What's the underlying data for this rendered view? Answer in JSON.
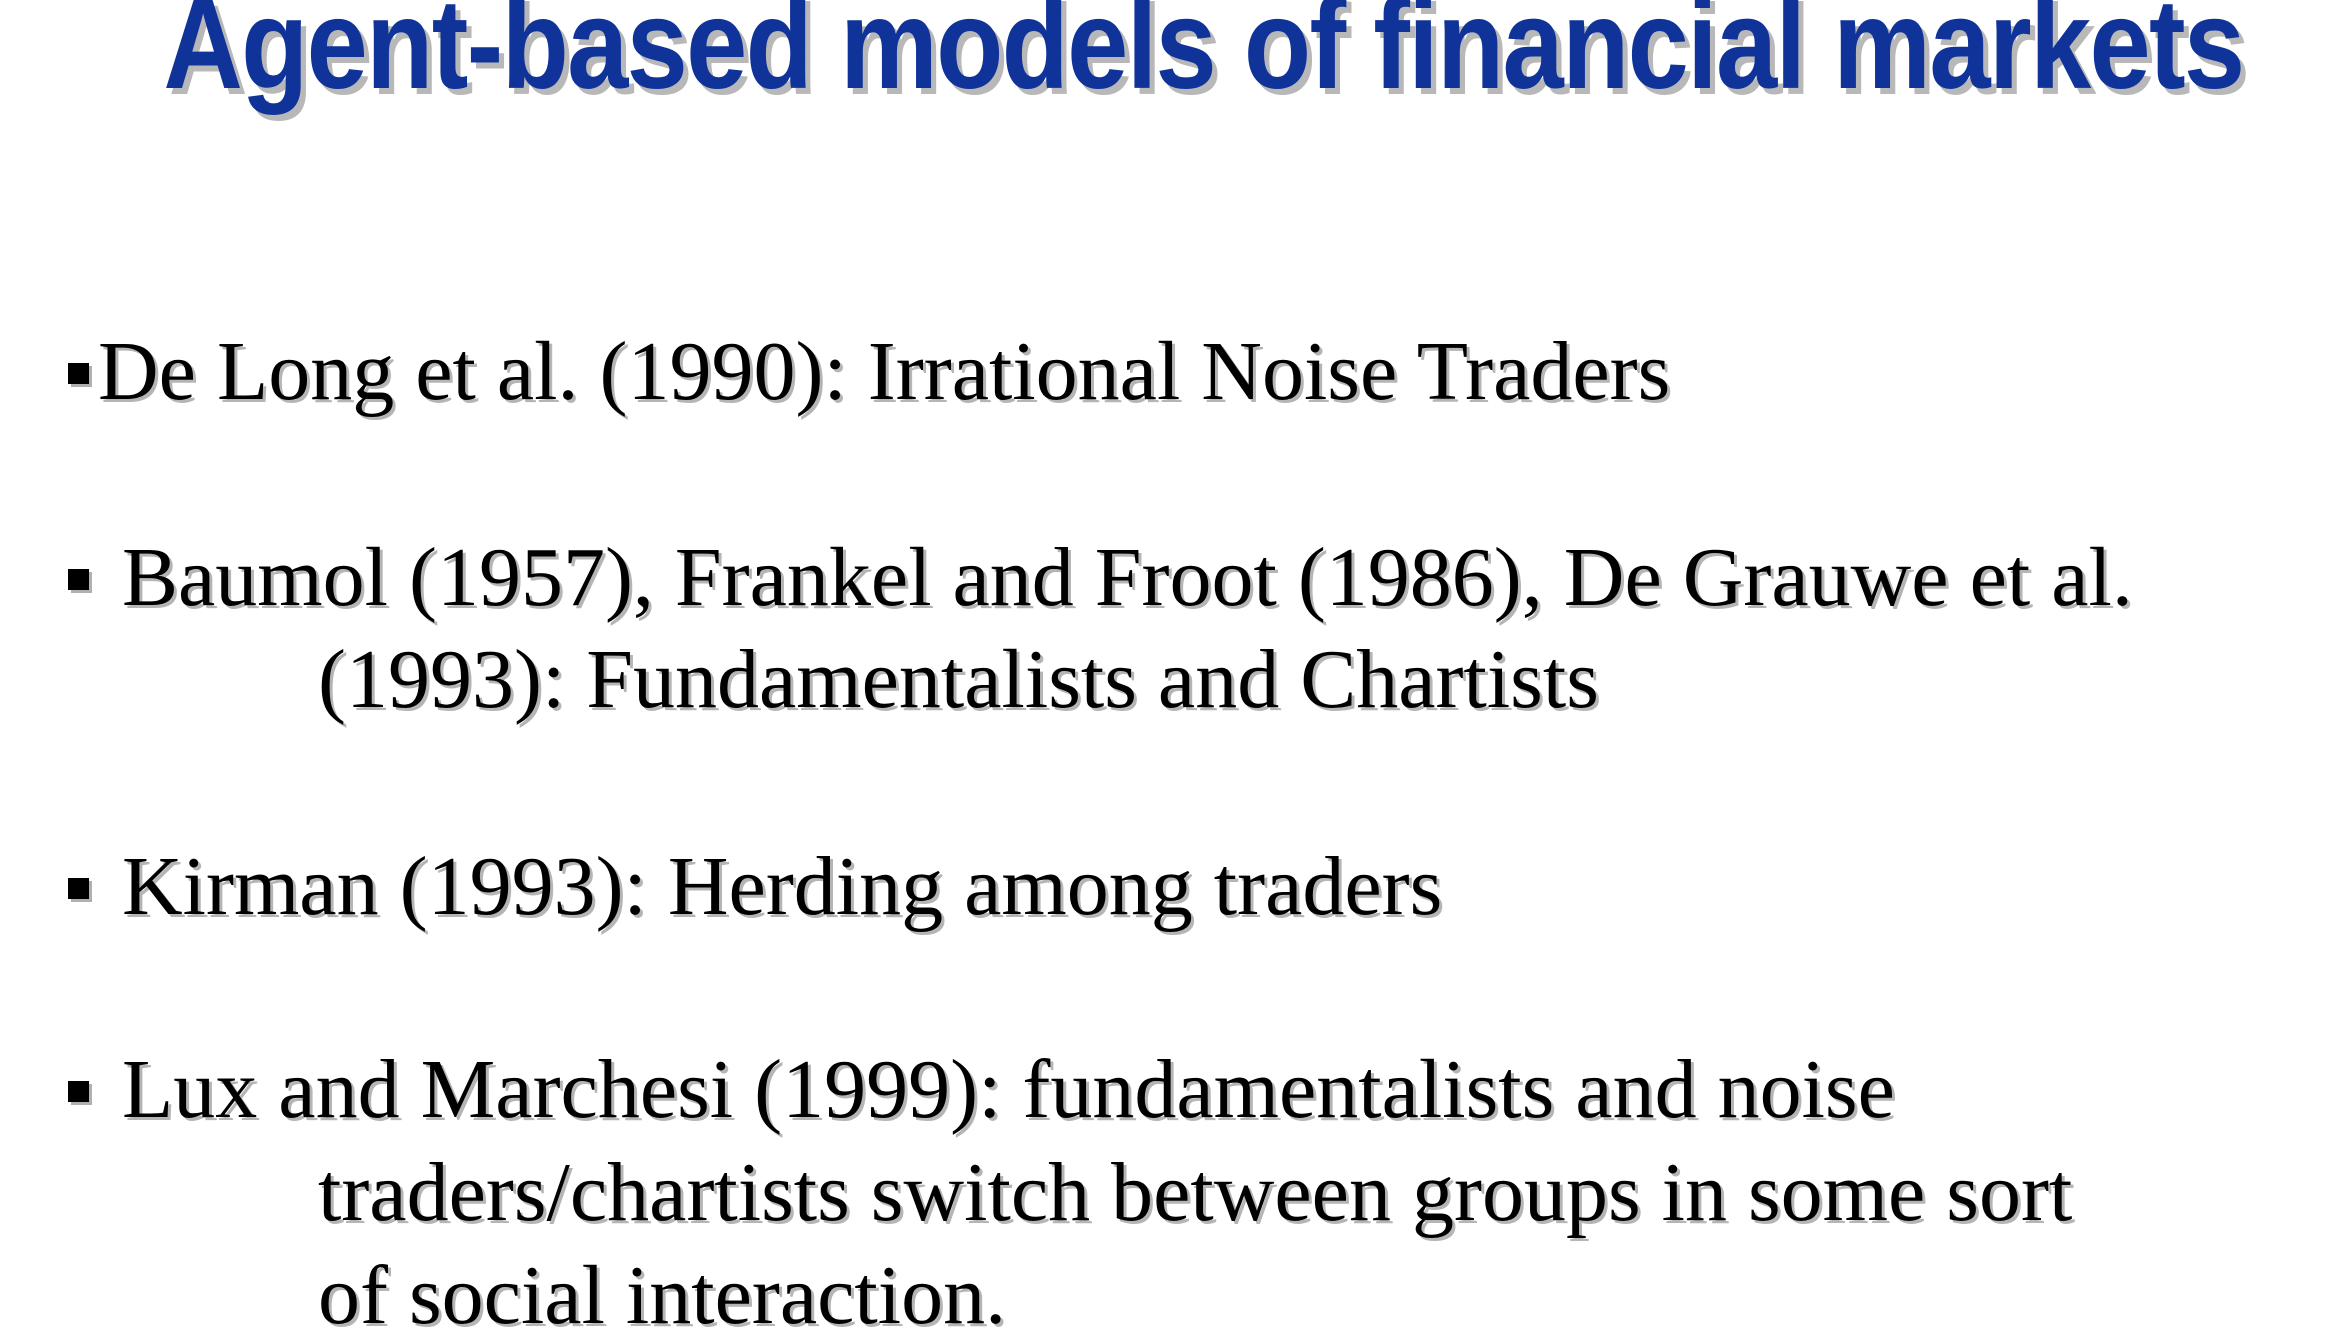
{
  "slide": {
    "title": "Agent-based models of financial markets",
    "title_color": "#0f3399",
    "bullets": [
      {
        "lines": [
          "De Long et al. (1990): Irrational Noise Traders"
        ]
      },
      {
        "lines": [
          "Baumol (1957), Frankel and Froot (1986), De Grauwe et al.",
          "(1993): Fundamentalists and Chartists"
        ]
      },
      {
        "lines": [
          "Kirman (1993): Herding among traders"
        ]
      },
      {
        "lines": [
          "Lux and Marchesi (1999): fundamentalists and noise",
          "traders/chartists switch between groups in some sort",
          "of social interaction."
        ]
      }
    ]
  }
}
